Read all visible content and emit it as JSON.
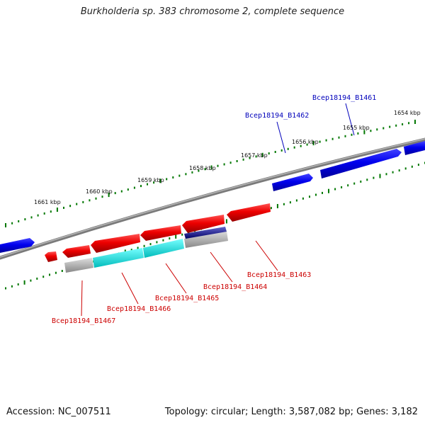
{
  "title": "Burkholderia sp. 383 chromosome 2, complete sequence",
  "footer": {
    "accession": "Accession: NC_007511",
    "summary": "Topology: circular; Length: 3,587,082 bp; Genes: 3,182"
  },
  "colors": {
    "forward_gene": "#0000ee",
    "reverse_gene": "#ee0000",
    "backbone": "#808080",
    "ticks": "#007700",
    "label_forward": "#0000bb",
    "label_reverse": "#cc0000",
    "cds_cyan": "#00eeee",
    "cds_gray": "#aaaaaa",
    "cds_navy": "#000080"
  },
  "ruler": {
    "unit": "kbp",
    "labels": [
      "1654 kbp",
      "1655 kbp",
      "1656 kbp",
      "1657 kbp",
      "1658 kbp",
      "1659 kbp",
      "1660 kbp",
      "1661 kbp"
    ]
  },
  "genes": [
    {
      "id": "Bcep18194_B1461",
      "strand": "forward"
    },
    {
      "id": "Bcep18194_B1462",
      "strand": "forward"
    },
    {
      "id": "Bcep18194_B1463",
      "strand": "reverse"
    },
    {
      "id": "Bcep18194_B1464",
      "strand": "reverse"
    },
    {
      "id": "Bcep18194_B1465",
      "strand": "reverse"
    },
    {
      "id": "Bcep18194_B1466",
      "strand": "reverse"
    },
    {
      "id": "Bcep18194_B1467",
      "strand": "reverse"
    }
  ]
}
